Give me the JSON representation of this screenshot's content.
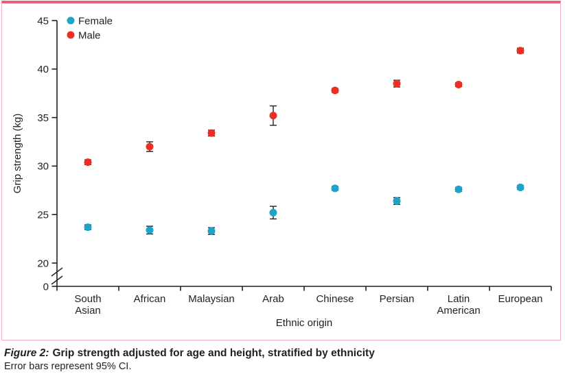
{
  "figure": {
    "caption_prefix": "Figure 2:",
    "caption_title": "Grip strength adjusted for age and height, stratified by ethnicity",
    "caption_note": "Error bars represent 95% CI.",
    "accent_top_bar_color": "#e2607c",
    "border_color": "#f4b2c0",
    "text_color": "#231f20"
  },
  "chart_data": {
    "type": "scatter",
    "title": "",
    "xlabel": "Ethnic origin",
    "ylabel": "Grip strength (kg)",
    "grid": false,
    "legend_position": "top-left-inside",
    "axis_break": "y axis broken between 0 and 20",
    "y_ticks": [
      45,
      40,
      35,
      30,
      25,
      20,
      0
    ],
    "ylim": [
      0,
      45
    ],
    "categories": [
      "South Asian",
      "African",
      "Malaysian",
      "Arab",
      "Chinese",
      "Persian",
      "Latin American",
      "European"
    ],
    "category_label_lines": [
      [
        "South",
        "Asian"
      ],
      [
        "African"
      ],
      [
        "Malaysian"
      ],
      [
        "Arab"
      ],
      [
        "Chinese"
      ],
      [
        "Persian"
      ],
      [
        "Latin",
        "American"
      ],
      [
        "European"
      ]
    ],
    "series": [
      {
        "name": "Female",
        "color": "#1da5c9",
        "values": [
          23.7,
          23.4,
          23.3,
          25.2,
          27.7,
          26.4,
          27.6,
          27.8
        ],
        "ci95_half": [
          0.25,
          0.4,
          0.35,
          0.65,
          0.2,
          0.35,
          0.2,
          0.2
        ]
      },
      {
        "name": "Male",
        "color": "#ee2e24",
        "values": [
          30.4,
          32.0,
          33.4,
          35.2,
          37.8,
          38.5,
          38.4,
          41.9
        ],
        "ci95_half": [
          0.25,
          0.5,
          0.3,
          1.0,
          0.2,
          0.35,
          0.2,
          0.25
        ]
      }
    ]
  }
}
